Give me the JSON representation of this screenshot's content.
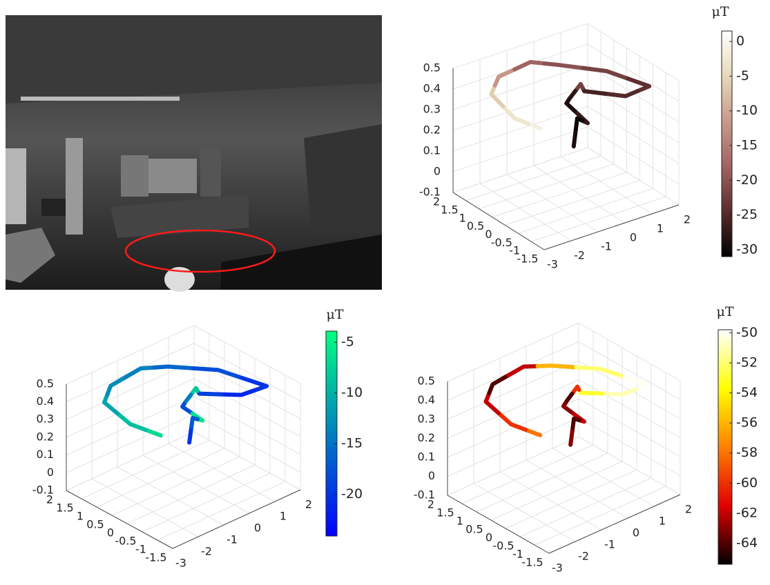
{
  "chart_data": [
    {
      "type": "line3d",
      "xlim": [
        -3,
        2
      ],
      "ylim": [
        -1.5,
        2
      ],
      "zlim": [
        -0.1,
        0.5
      ],
      "xticks": [
        -3,
        -2,
        -1,
        0,
        1,
        2
      ],
      "yticks": [
        2,
        1.5,
        1,
        0.5,
        0,
        -0.5,
        -1,
        -1.5
      ],
      "zticks": [
        0.5,
        0.4,
        0.3,
        0.2,
        0.1,
        0,
        -0.1
      ],
      "x": [
        -1.68,
        -1.68,
        -1.87,
        -1.5,
        -0.32,
        0.74,
        1.74,
        1.87,
        1.47,
        0.42,
        0.29,
        -0.11,
        -0.24,
        0.55,
        0.16,
        0.03
      ],
      "y": [
        0,
        1,
        1.7,
        1.8,
        1.8,
        1.8,
        1,
        -0.5,
        0,
        0.5,
        0.5,
        0.5,
        0.5,
        0.5,
        0.5,
        0.5
      ],
      "z": [
        0.31,
        0.28,
        0.35,
        0.41,
        0.43,
        0.37,
        0.36,
        0.4,
        0.33,
        0.36,
        0.4,
        0.35,
        0.33,
        0.2,
        0.24,
        0.11
      ],
      "values": [
        -1,
        -3,
        -6,
        -12,
        -18,
        -20,
        -22,
        -24,
        -25,
        -26,
        -22,
        -28,
        -29,
        -27,
        -30,
        -29
      ],
      "colormap": [
        "#000000",
        "#5a2c2c",
        "#a06464",
        "#c89a8c",
        "#e6d9b8",
        "#ffffff"
      ],
      "clim": [
        -31,
        1.5
      ],
      "cticks": [
        0,
        -5,
        -10,
        -15,
        -20,
        -25,
        -30
      ],
      "colorbar_label": "μT",
      "grid": true
    },
    {
      "type": "line3d",
      "xlim": [
        -3,
        2
      ],
      "ylim": [
        -1.5,
        2
      ],
      "zlim": [
        -0.1,
        0.5
      ],
      "xticks": [
        -3,
        -2,
        -1,
        0,
        1,
        2
      ],
      "yticks": [
        2,
        1.5,
        1,
        0.5,
        0,
        -0.5,
        -1,
        -1.5
      ],
      "zticks": [
        0.5,
        0.4,
        0.3,
        0.2,
        0.1,
        0,
        -0.1
      ],
      "x": [
        -1.68,
        -1.68,
        -1.87,
        -1.5,
        -0.32,
        0.74,
        1.74,
        1.87,
        1.47,
        0.42,
        0.29,
        -0.11,
        -0.24,
        0.55,
        0.16,
        0.03
      ],
      "y": [
        0,
        1,
        1.7,
        1.8,
        1.8,
        1.8,
        1,
        -0.5,
        0,
        0.5,
        0.5,
        0.5,
        0.5,
        0.5,
        0.5,
        0.5
      ],
      "z": [
        0.31,
        0.28,
        0.35,
        0.41,
        0.43,
        0.37,
        0.36,
        0.4,
        0.33,
        0.36,
        0.4,
        0.35,
        0.33,
        0.2,
        0.24,
        0.11
      ],
      "values": [
        -7,
        -9,
        -11,
        -13,
        -14,
        -16,
        -18,
        -20,
        -21,
        -19,
        -8,
        -14,
        -18,
        -6,
        -17,
        -20
      ],
      "colormap": [
        "#0000ff",
        "#00ff80"
      ],
      "clim": [
        -24.1,
        -3.9
      ],
      "cticks": [
        -5,
        -10,
        -15,
        -20
      ],
      "colorbar_label": "μT",
      "grid": true
    },
    {
      "type": "line3d",
      "xlim": [
        -3,
        2
      ],
      "ylim": [
        -1.5,
        2
      ],
      "zlim": [
        -0.1,
        0.5
      ],
      "xticks": [
        -3,
        -2,
        -1,
        0,
        1,
        2
      ],
      "yticks": [
        2,
        1.5,
        1,
        0.5,
        0,
        -0.5,
        -1,
        -1.5
      ],
      "zticks": [
        0.5,
        0.4,
        0.3,
        0.2,
        0.1,
        0,
        -0.1
      ],
      "x": [
        -1.68,
        -1.68,
        -1.87,
        -1.5,
        -0.32,
        0.74,
        1.74,
        1.87,
        1.47,
        0.42,
        0.29,
        -0.11,
        -0.24,
        0.55,
        0.16,
        0.03
      ],
      "y": [
        0,
        1,
        1.7,
        1.8,
        1.8,
        1.8,
        1,
        -0.5,
        0,
        0.5,
        0.5,
        0.5,
        0.5,
        0.5,
        0.5,
        0.5
      ],
      "z": [
        0.31,
        0.28,
        0.35,
        0.41,
        0.43,
        0.37,
        0.36,
        0.4,
        0.33,
        0.36,
        0.4,
        0.35,
        0.33,
        0.2,
        0.24,
        0.11
      ],
      "values": [
        -58,
        -60,
        -62,
        -64,
        -62,
        -56,
        -52,
        -50,
        -51,
        -53,
        -60,
        -64,
        -63,
        -62,
        -64,
        -63
      ],
      "colormap": [
        "#000000",
        "#e00000",
        "#ff8000",
        "#ffff00",
        "#ffffff"
      ],
      "clim": [
        -65.4,
        -49.8
      ],
      "cticks": [
        -50,
        -52,
        -54,
        -56,
        -58,
        -60,
        -62,
        -64
      ],
      "colorbar_label": "μT",
      "grid": true
    }
  ]
}
